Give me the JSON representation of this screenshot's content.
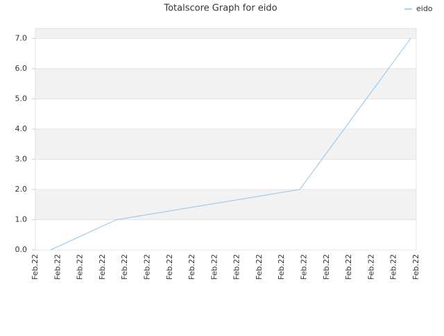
{
  "chart_data": {
    "type": "line",
    "title": "Totalscore Graph for eido",
    "xticks": [
      {
        "value": 0,
        "label": "Feb.22"
      },
      {
        "value": 1,
        "label": "Feb.22"
      },
      {
        "value": 2,
        "label": "Feb.22"
      },
      {
        "value": 3,
        "label": "Feb.22"
      },
      {
        "value": 4,
        "label": "Feb.22"
      },
      {
        "value": 5,
        "label": "Feb.22"
      },
      {
        "value": 6,
        "label": "Feb.22"
      },
      {
        "value": 7,
        "label": "Feb.22"
      },
      {
        "value": 8,
        "label": "Feb.22"
      },
      {
        "value": 9,
        "label": "Feb.22"
      },
      {
        "value": 10,
        "label": "Feb.22"
      },
      {
        "value": 11,
        "label": "Feb.22"
      },
      {
        "value": 12,
        "label": "Feb.22"
      },
      {
        "value": 13,
        "label": "Feb.22"
      },
      {
        "value": 14,
        "label": "Feb.22"
      },
      {
        "value": 15,
        "label": "Feb.22"
      },
      {
        "value": 16,
        "label": "Feb.22"
      },
      {
        "value": 17,
        "label": "Feb.22"
      }
    ],
    "xlim": [
      0,
      17
    ],
    "x": [
      0.68,
      3.62,
      11.8,
      16.75
    ],
    "series": [
      {
        "name": "eido",
        "color": "#8cc4f0",
        "values": [
          0,
          1,
          2,
          7
        ]
      }
    ],
    "ylim": [
      0,
      7.33
    ],
    "yticks": [
      {
        "value": 0,
        "label": "0.0"
      },
      {
        "value": 1,
        "label": "1.0"
      },
      {
        "value": 2,
        "label": "2.0"
      },
      {
        "value": 3,
        "label": "3.0"
      },
      {
        "value": 4,
        "label": "4.0"
      },
      {
        "value": 5,
        "label": "5.0"
      },
      {
        "value": 6,
        "label": "6.0"
      },
      {
        "value": 7,
        "label": "7.0"
      }
    ],
    "grid": true,
    "legend": "top-right"
  }
}
